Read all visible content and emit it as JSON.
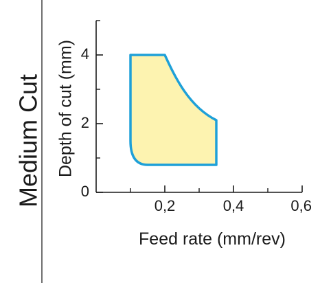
{
  "side_label": "Medium Cut",
  "colors": {
    "region_fill": "#fdf3b0",
    "region_stroke": "#1ea0d8",
    "axis": "#1a1a1a"
  },
  "chart_data": {
    "type": "area",
    "title": "",
    "xlabel": "Feed rate (mm/rev)",
    "ylabel": "Depth of cut (mm)",
    "xlim": [
      0,
      0.6
    ],
    "ylim": [
      0,
      5
    ],
    "x_ticks": [
      {
        "value": 0.2,
        "label": "0,2"
      },
      {
        "value": 0.4,
        "label": "0,4"
      },
      {
        "value": 0.6,
        "label": "0,6"
      }
    ],
    "y_ticks": [
      {
        "value": 0,
        "label": "0"
      },
      {
        "value": 2,
        "label": "2"
      },
      {
        "value": 4,
        "label": "4"
      }
    ],
    "grid": false,
    "legend": "none",
    "region": {
      "name": "",
      "boundary": [
        {
          "x": 0.1,
          "y": 4.0
        },
        {
          "x": 0.2,
          "y": 4.0
        },
        {
          "x": 0.22,
          "y": 3.6
        },
        {
          "x": 0.25,
          "y": 3.1
        },
        {
          "x": 0.28,
          "y": 2.7
        },
        {
          "x": 0.31,
          "y": 2.4
        },
        {
          "x": 0.35,
          "y": 2.1
        },
        {
          "x": 0.35,
          "y": 0.8
        },
        {
          "x": 0.15,
          "y": 0.8
        },
        {
          "x": 0.12,
          "y": 0.95
        },
        {
          "x": 0.1,
          "y": 1.5
        }
      ]
    }
  }
}
